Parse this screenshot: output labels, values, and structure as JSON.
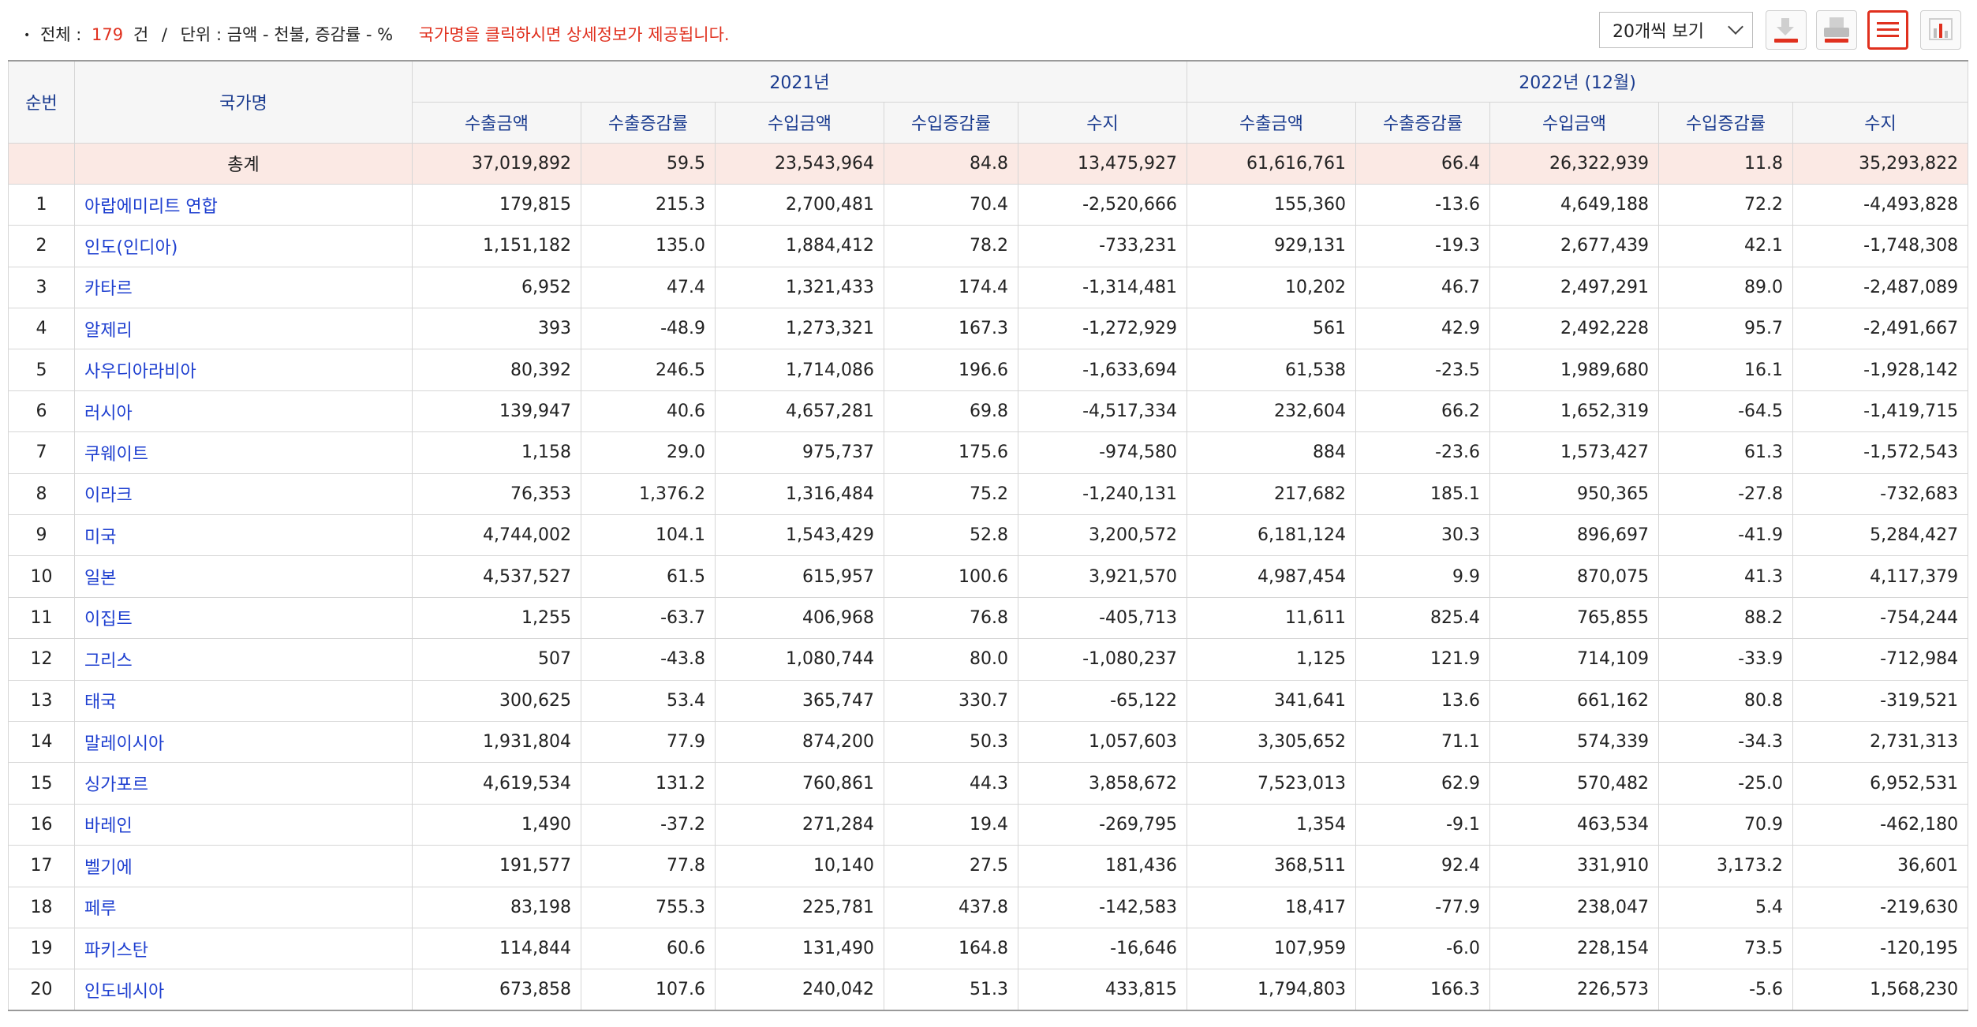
{
  "info": {
    "bullet": "•",
    "total_label": "전체",
    "colon1": ":",
    "total_count": "179",
    "total_unit": "건",
    "slash": "/",
    "unit_label": "단위",
    "colon2": ":",
    "unit_text": "금액 - 천불, 증감률 - %",
    "notice": "국가명을 클릭하시면 상세정보가 제공됩니다."
  },
  "toolbar": {
    "page_size": "20개씩 보기",
    "accent_color": "#e0301e",
    "icons": [
      "download-icon",
      "print-icon",
      "list-view-icon",
      "chart-view-icon"
    ]
  },
  "table": {
    "headers": {
      "rank": "순번",
      "name": "국가명",
      "group1": "2021년",
      "group2": "2022년 (12월)",
      "cols": [
        "수출금액",
        "수출증감률",
        "수입금액",
        "수입증감률",
        "수지",
        "수출금액",
        "수출증감률",
        "수입금액",
        "수입증감률",
        "수지"
      ]
    },
    "total": {
      "rank": "",
      "name": "총계",
      "values": [
        "37,019,892",
        "59.5",
        "23,543,964",
        "84.8",
        "13,475,927",
        "61,616,761",
        "66.4",
        "26,322,939",
        "11.8",
        "35,293,822"
      ]
    },
    "rows": [
      {
        "rank": "1",
        "name": "아랍에미리트 연합",
        "values": [
          "179,815",
          "215.3",
          "2,700,481",
          "70.4",
          "-2,520,666",
          "155,360",
          "-13.6",
          "4,649,188",
          "72.2",
          "-4,493,828"
        ]
      },
      {
        "rank": "2",
        "name": "인도(인디아)",
        "values": [
          "1,151,182",
          "135.0",
          "1,884,412",
          "78.2",
          "-733,231",
          "929,131",
          "-19.3",
          "2,677,439",
          "42.1",
          "-1,748,308"
        ]
      },
      {
        "rank": "3",
        "name": "카타르",
        "values": [
          "6,952",
          "47.4",
          "1,321,433",
          "174.4",
          "-1,314,481",
          "10,202",
          "46.7",
          "2,497,291",
          "89.0",
          "-2,487,089"
        ]
      },
      {
        "rank": "4",
        "name": "알제리",
        "values": [
          "393",
          "-48.9",
          "1,273,321",
          "167.3",
          "-1,272,929",
          "561",
          "42.9",
          "2,492,228",
          "95.7",
          "-2,491,667"
        ]
      },
      {
        "rank": "5",
        "name": "사우디아라비아",
        "values": [
          "80,392",
          "246.5",
          "1,714,086",
          "196.6",
          "-1,633,694",
          "61,538",
          "-23.5",
          "1,989,680",
          "16.1",
          "-1,928,142"
        ]
      },
      {
        "rank": "6",
        "name": "러시아",
        "values": [
          "139,947",
          "40.6",
          "4,657,281",
          "69.8",
          "-4,517,334",
          "232,604",
          "66.2",
          "1,652,319",
          "-64.5",
          "-1,419,715"
        ]
      },
      {
        "rank": "7",
        "name": "쿠웨이트",
        "values": [
          "1,158",
          "29.0",
          "975,737",
          "175.6",
          "-974,580",
          "884",
          "-23.6",
          "1,573,427",
          "61.3",
          "-1,572,543"
        ]
      },
      {
        "rank": "8",
        "name": "이라크",
        "values": [
          "76,353",
          "1,376.2",
          "1,316,484",
          "75.2",
          "-1,240,131",
          "217,682",
          "185.1",
          "950,365",
          "-27.8",
          "-732,683"
        ]
      },
      {
        "rank": "9",
        "name": "미국",
        "values": [
          "4,744,002",
          "104.1",
          "1,543,429",
          "52.8",
          "3,200,572",
          "6,181,124",
          "30.3",
          "896,697",
          "-41.9",
          "5,284,427"
        ]
      },
      {
        "rank": "10",
        "name": "일본",
        "values": [
          "4,537,527",
          "61.5",
          "615,957",
          "100.6",
          "3,921,570",
          "4,987,454",
          "9.9",
          "870,075",
          "41.3",
          "4,117,379"
        ]
      },
      {
        "rank": "11",
        "name": "이집트",
        "values": [
          "1,255",
          "-63.7",
          "406,968",
          "76.8",
          "-405,713",
          "11,611",
          "825.4",
          "765,855",
          "88.2",
          "-754,244"
        ]
      },
      {
        "rank": "12",
        "name": "그리스",
        "values": [
          "507",
          "-43.8",
          "1,080,744",
          "80.0",
          "-1,080,237",
          "1,125",
          "121.9",
          "714,109",
          "-33.9",
          "-712,984"
        ]
      },
      {
        "rank": "13",
        "name": "태국",
        "values": [
          "300,625",
          "53.4",
          "365,747",
          "330.7",
          "-65,122",
          "341,641",
          "13.6",
          "661,162",
          "80.8",
          "-319,521"
        ]
      },
      {
        "rank": "14",
        "name": "말레이시아",
        "values": [
          "1,931,804",
          "77.9",
          "874,200",
          "50.3",
          "1,057,603",
          "3,305,652",
          "71.1",
          "574,339",
          "-34.3",
          "2,731,313"
        ]
      },
      {
        "rank": "15",
        "name": "싱가포르",
        "values": [
          "4,619,534",
          "131.2",
          "760,861",
          "44.3",
          "3,858,672",
          "7,523,013",
          "62.9",
          "570,482",
          "-25.0",
          "6,952,531"
        ]
      },
      {
        "rank": "16",
        "name": "바레인",
        "values": [
          "1,490",
          "-37.2",
          "271,284",
          "19.4",
          "-269,795",
          "1,354",
          "-9.1",
          "463,534",
          "70.9",
          "-462,180"
        ]
      },
      {
        "rank": "17",
        "name": "벨기에",
        "values": [
          "191,577",
          "77.8",
          "10,140",
          "27.5",
          "181,436",
          "368,511",
          "92.4",
          "331,910",
          "3,173.2",
          "36,601"
        ]
      },
      {
        "rank": "18",
        "name": "페루",
        "values": [
          "83,198",
          "755.3",
          "225,781",
          "437.8",
          "-142,583",
          "18,417",
          "-77.9",
          "238,047",
          "5.4",
          "-219,630"
        ]
      },
      {
        "rank": "19",
        "name": "파키스탄",
        "values": [
          "114,844",
          "60.6",
          "131,490",
          "164.8",
          "-16,646",
          "107,959",
          "-6.0",
          "228,154",
          "73.5",
          "-120,195"
        ]
      },
      {
        "rank": "20",
        "name": "인도네시아",
        "values": [
          "673,858",
          "107.6",
          "240,042",
          "51.3",
          "433,815",
          "1,794,803",
          "166.3",
          "226,573",
          "-5.6",
          "1,568,230"
        ]
      }
    ]
  }
}
